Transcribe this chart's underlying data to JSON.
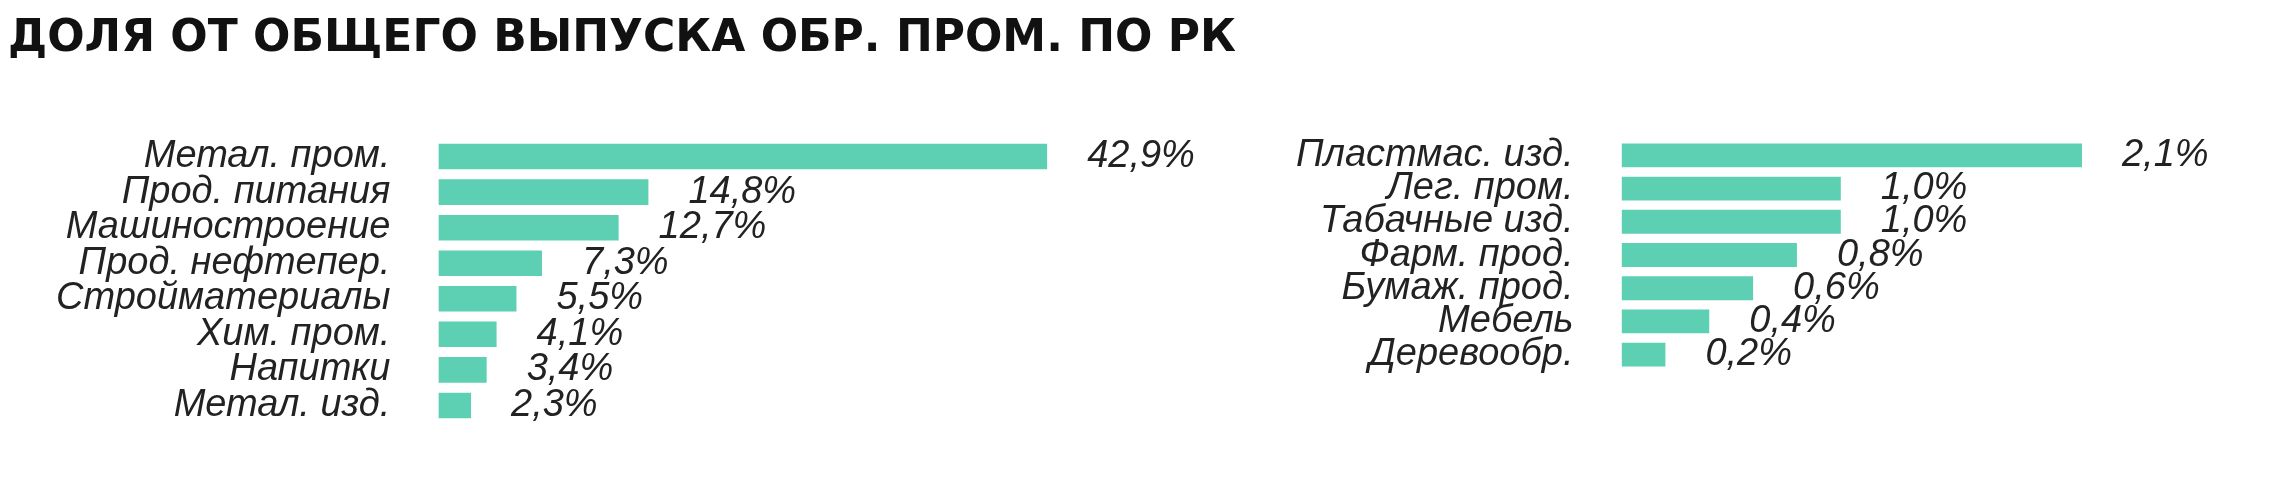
{
  "chart_data": [
    {
      "type": "bar",
      "orientation": "horizontal",
      "title": "ДОЛЯ ОТ ОБЩЕГО ВЫПУСКА ОБР. ПРОМ. ПО РК",
      "categories": [
        "Метал. пром.",
        "Прод. питания",
        "Машиностроение",
        "Прод. нефтепер.",
        "Стройматериалы",
        "Хим. пром.",
        "Напитки",
        "Метал. изд."
      ],
      "values": [
        42.9,
        14.8,
        12.7,
        7.3,
        5.5,
        4.1,
        3.4,
        2.3
      ],
      "value_labels": [
        "42,9%",
        "14,8%",
        "12,7%",
        "7,3%",
        "5,5%",
        "4,1%",
        "3,4%",
        "2,3%"
      ],
      "color": "#5dd0b3",
      "grid": false,
      "legend": false,
      "tick_labels": "y"
    },
    {
      "type": "bar",
      "orientation": "horizontal",
      "categories": [
        "Пластмас. изд.",
        "Лег. пром.",
        "Табачные изд.",
        "Фарм. прод.",
        "Бумаж. прод.",
        "Мебель",
        "Деревообр."
      ],
      "values": [
        2.1,
        1.0,
        1.0,
        0.8,
        0.6,
        0.4,
        0.2
      ],
      "value_labels": [
        "2,1%",
        "1,0%",
        "1,0%",
        "0,8%",
        "0,6%",
        "0,4%",
        "0,2%"
      ],
      "color": "#5dd0b3",
      "grid": false,
      "legend": false,
      "tick_labels": "y"
    }
  ]
}
